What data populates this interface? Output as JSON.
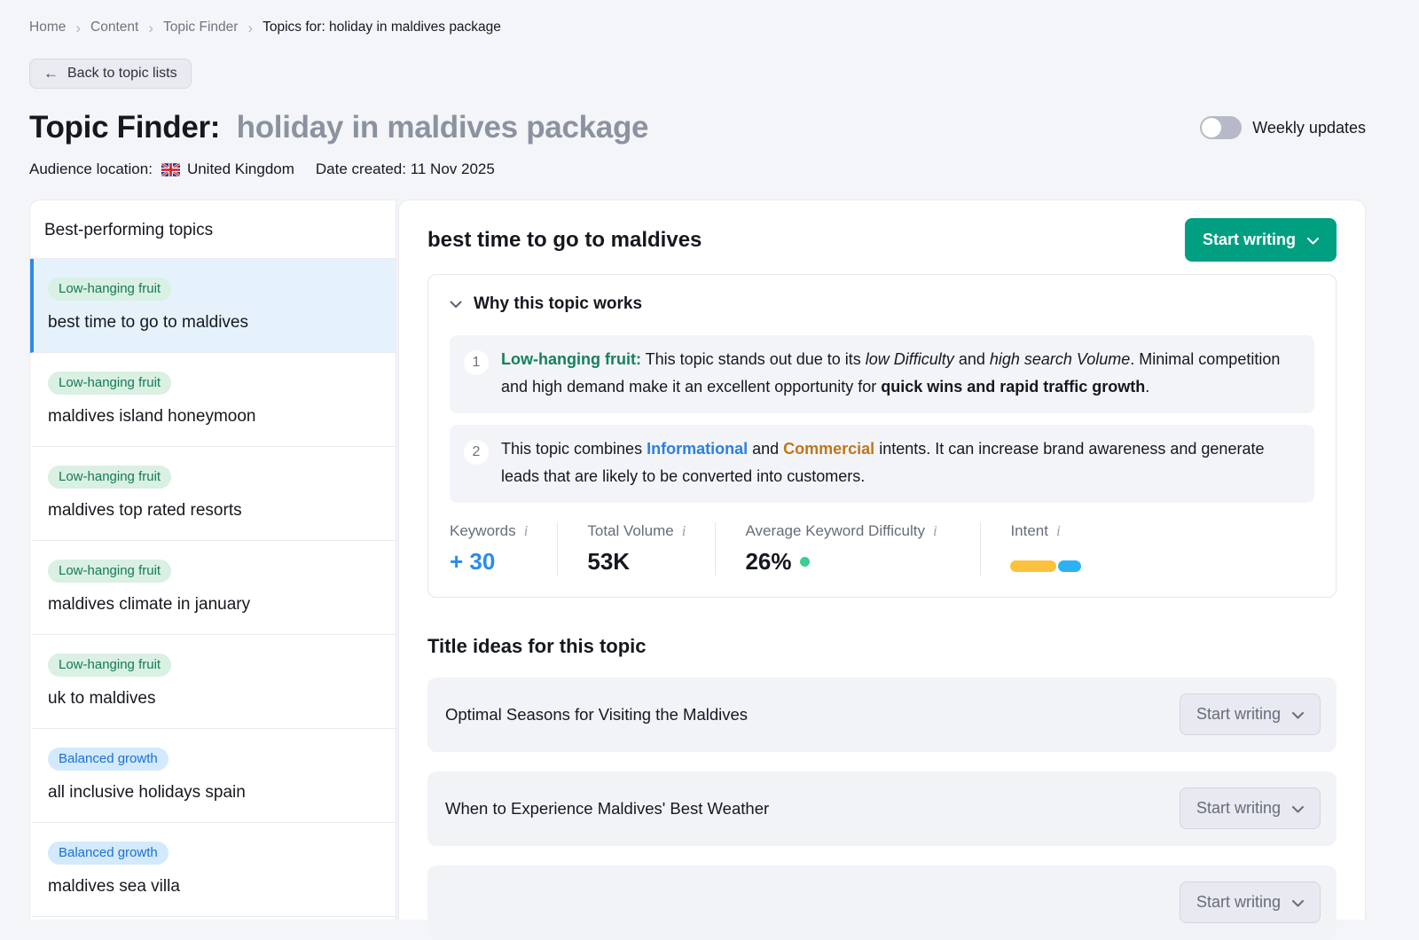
{
  "breadcrumb": {
    "items": [
      "Home",
      "Content",
      "Topic Finder"
    ],
    "current": "Topics for: holiday in maldives package"
  },
  "back_button": {
    "label": "Back to topic lists"
  },
  "header": {
    "title_prefix": "Topic Finder:",
    "title_topic": "holiday in maldives package",
    "weekly_updates_label": "Weekly updates",
    "weekly_updates_state": "off",
    "audience_location_label": "Audience location:",
    "audience_location_value": "United Kingdom",
    "audience_location_flag": "uk-flag-icon",
    "date_created": "Date created: 11 Nov 2025"
  },
  "sidebar": {
    "title": "Best-performing topics",
    "items": [
      {
        "badge": "Low-hanging fruit",
        "badge_type": "green",
        "label": "best time to go to maldives",
        "selected": true
      },
      {
        "badge": "Low-hanging fruit",
        "badge_type": "green",
        "label": "maldives island honeymoon",
        "selected": false
      },
      {
        "badge": "Low-hanging fruit",
        "badge_type": "green",
        "label": "maldives top rated resorts",
        "selected": false
      },
      {
        "badge": "Low-hanging fruit",
        "badge_type": "green",
        "label": "maldives climate in january",
        "selected": false
      },
      {
        "badge": "Low-hanging fruit",
        "badge_type": "green",
        "label": "uk to maldives",
        "selected": false
      },
      {
        "badge": "Balanced growth",
        "badge_type": "blue",
        "label": "all inclusive holidays spain",
        "selected": false
      },
      {
        "badge": "Balanced growth",
        "badge_type": "blue",
        "label": "maldives sea villa",
        "selected": false
      }
    ]
  },
  "main": {
    "topic_title": "best time to go to maldives",
    "start_writing_label": "Start writing",
    "why": {
      "title": "Why this topic works",
      "points": [
        {
          "number": "1",
          "segments": [
            {
              "text": "Low-hanging fruit:",
              "style": "green-bold"
            },
            {
              "text": " This topic stands out due to its ",
              "style": "normal"
            },
            {
              "text": "low Difficulty",
              "style": "italic"
            },
            {
              "text": " and ",
              "style": "normal"
            },
            {
              "text": "high search Volume",
              "style": "italic"
            },
            {
              "text": ". Minimal competition and high demand make it an excellent opportunity for ",
              "style": "normal"
            },
            {
              "text": "quick wins and rapid traffic growth",
              "style": "bold"
            },
            {
              "text": ".",
              "style": "normal"
            }
          ]
        },
        {
          "number": "2",
          "segments": [
            {
              "text": "This topic combines ",
              "style": "normal"
            },
            {
              "text": "Informational",
              "style": "blue-bold"
            },
            {
              "text": " and ",
              "style": "normal"
            },
            {
              "text": "Commercial",
              "style": "orange-bold"
            },
            {
              "text": " intents. It can increase brand awareness and generate leads that are likely to be converted into customers.",
              "style": "normal"
            }
          ]
        }
      ]
    },
    "metrics": {
      "keywords": {
        "label": "Keywords",
        "value": "+ 30",
        "value_color": "#298bf0"
      },
      "total_volume": {
        "label": "Total Volume",
        "value": "53K"
      },
      "difficulty": {
        "label": "Average Keyword Difficulty",
        "value": "26%",
        "dot_color": "#3ecd90"
      },
      "intent": {
        "label": "Intent",
        "segments": [
          {
            "name": "informational",
            "color": "#fcc23d",
            "width": 52
          },
          {
            "name": "commercial",
            "color": "#2cb1f5",
            "width": 26
          }
        ]
      }
    },
    "title_ideas": {
      "heading": "Title ideas for this topic",
      "button_label": "Start writing",
      "items": [
        "Optimal Seasons for Visiting the Maldives",
        "When to Experience Maldives' Best Weather",
        ""
      ]
    }
  },
  "colors": {
    "accent_green": "#009f81",
    "selected_blue": "#2e89e5",
    "badge_green_bg": "#d9f0e3",
    "badge_green_text": "#157a56",
    "badge_blue_bg": "#d3e9fd",
    "badge_blue_text": "#1b70d4",
    "page_bg": "#f4f5f8"
  }
}
